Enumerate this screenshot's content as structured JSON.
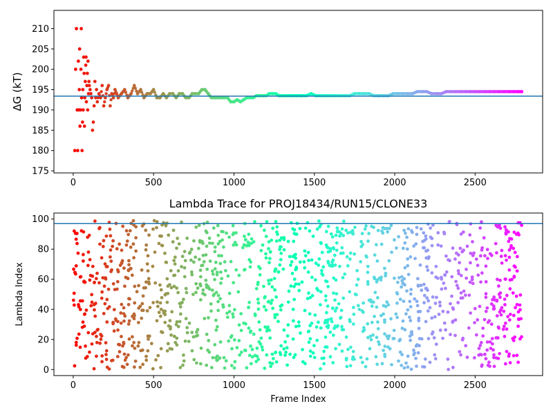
{
  "chart_data": [
    {
      "type": "scatter",
      "title": "",
      "xlabel": "",
      "ylabel": "ΔG (kT)",
      "xlim": [
        -120,
        2920
      ],
      "ylim": [
        174.5,
        214.5
      ],
      "xticks": [
        0,
        500,
        1000,
        1500,
        2000,
        2500
      ],
      "yticks": [
        175,
        180,
        185,
        190,
        195,
        200,
        205,
        210
      ],
      "grid": false,
      "colormap": "rainbow",
      "reference_line": {
        "y": 193.4,
        "color": "#1f77b4"
      },
      "series": [
        {
          "x": [
            10,
            15,
            20,
            25,
            28,
            32,
            35,
            38,
            40,
            42,
            45,
            48,
            50,
            52,
            55,
            58,
            60,
            62,
            65,
            68,
            70,
            72,
            75,
            78,
            80,
            82,
            85,
            88,
            90,
            92,
            95,
            98,
            100,
            105,
            110,
            115,
            120,
            125,
            130,
            135,
            140,
            145,
            150,
            160,
            170,
            180,
            190,
            200,
            210,
            220,
            230,
            240,
            250,
            260,
            270,
            280,
            300,
            320,
            340,
            360,
            380,
            400,
            420,
            440,
            460,
            480,
            500,
            520,
            540,
            560,
            580,
            600,
            620,
            640,
            660,
            680,
            700,
            720,
            740,
            760,
            780,
            800,
            820,
            840,
            860,
            880,
            900,
            920,
            940,
            960,
            980,
            1000,
            1020,
            1040,
            1060,
            1080,
            1100,
            1120,
            1140,
            1160,
            1180,
            1200,
            1220,
            1240,
            1260,
            1280,
            1300,
            1330,
            1360,
            1390,
            1420,
            1450,
            1480,
            1510,
            1540,
            1570,
            1600,
            1630,
            1660,
            1690,
            1720,
            1750,
            1780,
            1810,
            1840,
            1870,
            1900,
            1930,
            1960,
            1990,
            2020,
            2050,
            2080,
            2110,
            2140,
            2170,
            2200,
            2230,
            2260,
            2290,
            2320,
            2350,
            2380,
            2410,
            2440,
            2470,
            2500,
            2530,
            2560,
            2590,
            2620,
            2650,
            2680,
            2710,
            2740,
            2770,
            2790
          ],
          "y": [
            180,
            200,
            210,
            190,
            180,
            202,
            190,
            195,
            205,
            186,
            190,
            200,
            210,
            193,
            180,
            187,
            195,
            190,
            203,
            199,
            186,
            193,
            197,
            201,
            203,
            192,
            196,
            199,
            190,
            202,
            194,
            197,
            196,
            195,
            194,
            193,
            185,
            187,
            191,
            197,
            193,
            195,
            192,
            194,
            193,
            196,
            191,
            193,
            195,
            196,
            191,
            194,
            193,
            195,
            194,
            193,
            194,
            195,
            193,
            194,
            196,
            194,
            195,
            193,
            194,
            194,
            195,
            193,
            193,
            194,
            193,
            194,
            194,
            193,
            194,
            194,
            193,
            193,
            194,
            194,
            194,
            195,
            195,
            194,
            193,
            193,
            193,
            193,
            193,
            193,
            192,
            192,
            192.5,
            192,
            192.5,
            193,
            193,
            193,
            193.5,
            193.5,
            193.5,
            193.5,
            194,
            194,
            194,
            193.5,
            193.5,
            193.5,
            193.5,
            193.5,
            193.5,
            193.5,
            194,
            193.5,
            193.5,
            193.5,
            193.5,
            193.5,
            193.5,
            193.5,
            193.5,
            194,
            194,
            194,
            194,
            193.5,
            193.5,
            193.5,
            193.5,
            194,
            194,
            194,
            194,
            194,
            194.5,
            194.5,
            194.5,
            194,
            194,
            194,
            194.5,
            194.5,
            194.5,
            194.5,
            194.5,
            194.5,
            194.5,
            194.5,
            194.5,
            194.5,
            194.5,
            194.5,
            194.5,
            194.5,
            194.5,
            194.5,
            194.5
          ]
        }
      ]
    },
    {
      "type": "scatter",
      "title": "Lambda Trace for PROJ18434/RUN15/CLONE33",
      "xlabel": "Frame Index",
      "ylabel": "Lambda Index",
      "xlim": [
        -120,
        2920
      ],
      "ylim": [
        -4,
        104
      ],
      "xticks": [
        0,
        500,
        1000,
        1500,
        2000,
        2500
      ],
      "yticks": [
        0,
        20,
        40,
        60,
        80,
        100
      ],
      "grid": false,
      "colormap": "rainbow",
      "reference_line": {
        "y": 97,
        "color": "#1f77b4"
      },
      "series": [
        {
          "x_range": [
            0,
            2790
          ],
          "y_range": [
            0,
            99
          ],
          "point_count": 1400,
          "distribution": "uniform"
        }
      ]
    }
  ]
}
